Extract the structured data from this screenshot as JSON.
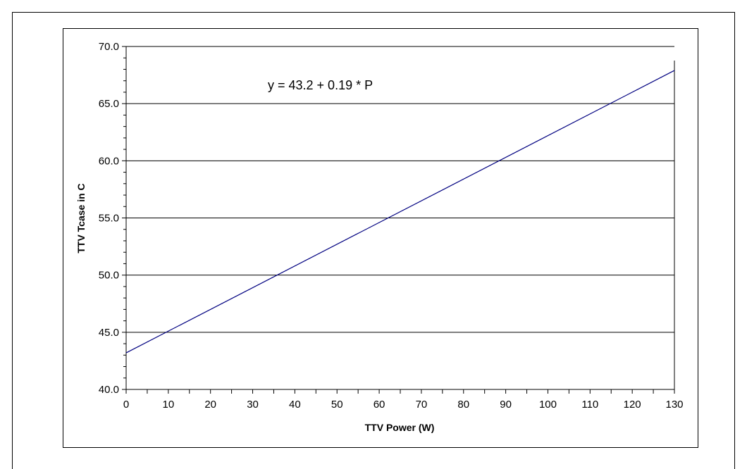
{
  "chart_data": {
    "type": "line",
    "xlabel": "TTV Power (W)",
    "ylabel": "TTV Tcase in C",
    "annotation": "y = 43.2 + 0.19 * P",
    "xlim": [
      0,
      130
    ],
    "ylim": [
      40.0,
      70.0
    ],
    "x_ticks": [
      "0",
      "10",
      "20",
      "30",
      "40",
      "50",
      "60",
      "70",
      "80",
      "90",
      "100",
      "110",
      "120",
      "130"
    ],
    "y_ticks": [
      "40.0",
      "45.0",
      "50.0",
      "55.0",
      "60.0",
      "65.0",
      "70.0"
    ],
    "grid": "horizontal major",
    "line_color": "#000080",
    "series": [
      {
        "x": [
          0,
          130
        ],
        "y": [
          43.2,
          67.9
        ]
      }
    ]
  }
}
